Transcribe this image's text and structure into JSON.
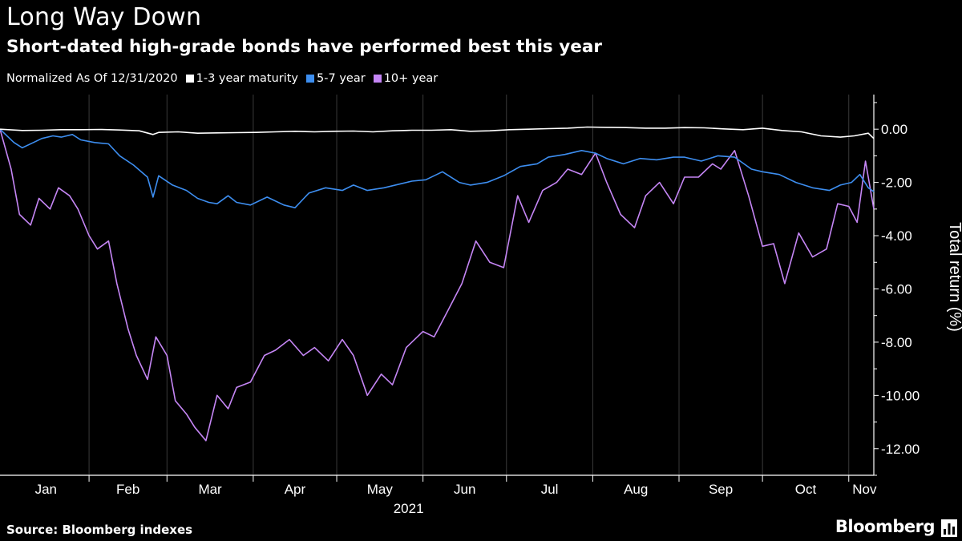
{
  "header": {
    "title": "Long Way Down",
    "subtitle": "Short-dated high-grade bonds have performed best this year"
  },
  "legend": {
    "note": "Normalized As Of 12/31/2020",
    "items": [
      {
        "label": "1-3 year maturity",
        "color": "#ffffff"
      },
      {
        "label": "5-7 year",
        "color": "#3d8ef0"
      },
      {
        "label": "10+ year",
        "color": "#c586f5"
      }
    ]
  },
  "footer": {
    "source": "Source: Bloomberg indexes",
    "brand": "Bloomberg",
    "brand_icon": "bloomberg-chart-icon"
  },
  "chart_data": {
    "type": "line",
    "title": "Long Way Down",
    "subtitle": "Short-dated high-grade bonds have performed best this year",
    "xlabel": "2021",
    "ylabel": "Total return (%)",
    "x_ticks": [
      "Jan",
      "Feb",
      "Mar",
      "Apr",
      "May",
      "Jun",
      "Jul",
      "Aug",
      "Sep",
      "Oct",
      "Nov"
    ],
    "x_year": "2021",
    "xlim": [
      "2020-12-31",
      "2021-11-10"
    ],
    "y_ticks": [
      0,
      -2,
      -4,
      -6,
      -8,
      -10,
      -12
    ],
    "y_tick_labels": [
      "0.00",
      "-2.00",
      "-4.00",
      "-6.00",
      "-8.00",
      "-10.00",
      "-12.00"
    ],
    "ylim": [
      -13,
      1.3
    ],
    "grid": "vertical month separators",
    "legend_position": "top-left",
    "series": [
      {
        "name": "1-3 year maturity",
        "color": "#ffffff",
        "x": [
          "2020-12-31",
          "2021-01-08",
          "2021-01-15",
          "2021-01-22",
          "2021-01-29",
          "2021-02-05",
          "2021-02-12",
          "2021-02-19",
          "2021-02-24",
          "2021-02-26",
          "2021-03-05",
          "2021-03-12",
          "2021-03-19",
          "2021-03-26",
          "2021-04-02",
          "2021-04-09",
          "2021-04-16",
          "2021-04-23",
          "2021-04-30",
          "2021-05-07",
          "2021-05-14",
          "2021-05-21",
          "2021-05-28",
          "2021-06-04",
          "2021-06-11",
          "2021-06-18",
          "2021-06-25",
          "2021-07-02",
          "2021-07-09",
          "2021-07-16",
          "2021-07-23",
          "2021-07-30",
          "2021-08-06",
          "2021-08-13",
          "2021-08-20",
          "2021-08-27",
          "2021-09-03",
          "2021-09-10",
          "2021-09-17",
          "2021-09-24",
          "2021-10-01",
          "2021-10-08",
          "2021-10-15",
          "2021-10-22",
          "2021-10-29",
          "2021-11-03",
          "2021-11-08",
          "2021-11-10"
        ],
        "values": [
          0.0,
          -0.05,
          -0.04,
          -0.02,
          -0.02,
          -0.01,
          -0.03,
          -0.06,
          -0.2,
          -0.12,
          -0.1,
          -0.15,
          -0.14,
          -0.13,
          -0.12,
          -0.1,
          -0.08,
          -0.1,
          -0.08,
          -0.07,
          -0.1,
          -0.06,
          -0.04,
          -0.04,
          -0.02,
          -0.08,
          -0.06,
          -0.02,
          0.0,
          0.02,
          0.04,
          0.08,
          0.07,
          0.06,
          0.04,
          0.04,
          0.06,
          0.05,
          0.01,
          -0.02,
          0.04,
          -0.05,
          -0.1,
          -0.25,
          -0.3,
          -0.25,
          -0.15,
          -0.35
        ]
      },
      {
        "name": "5-7 year",
        "color": "#3d8ef0",
        "x": [
          "2020-12-31",
          "2021-01-05",
          "2021-01-08",
          "2021-01-12",
          "2021-01-15",
          "2021-01-19",
          "2021-01-22",
          "2021-01-26",
          "2021-01-29",
          "2021-02-03",
          "2021-02-08",
          "2021-02-12",
          "2021-02-17",
          "2021-02-22",
          "2021-02-24",
          "2021-02-26",
          "2021-03-03",
          "2021-03-08",
          "2021-03-12",
          "2021-03-16",
          "2021-03-19",
          "2021-03-23",
          "2021-03-26",
          "2021-03-31",
          "2021-04-06",
          "2021-04-12",
          "2021-04-16",
          "2021-04-21",
          "2021-04-27",
          "2021-05-03",
          "2021-05-07",
          "2021-05-12",
          "2021-05-18",
          "2021-05-24",
          "2021-05-28",
          "2021-06-02",
          "2021-06-08",
          "2021-06-14",
          "2021-06-18",
          "2021-06-24",
          "2021-06-30",
          "2021-07-06",
          "2021-07-12",
          "2021-07-16",
          "2021-07-22",
          "2021-07-28",
          "2021-08-02",
          "2021-08-06",
          "2021-08-12",
          "2021-08-18",
          "2021-08-24",
          "2021-08-30",
          "2021-09-03",
          "2021-09-09",
          "2021-09-15",
          "2021-09-21",
          "2021-09-27",
          "2021-10-01",
          "2021-10-07",
          "2021-10-13",
          "2021-10-19",
          "2021-10-25",
          "2021-10-29",
          "2021-11-02",
          "2021-11-05",
          "2021-11-08",
          "2021-11-10"
        ],
        "values": [
          0.0,
          -0.5,
          -0.7,
          -0.5,
          -0.35,
          -0.25,
          -0.3,
          -0.2,
          -0.4,
          -0.5,
          -0.55,
          -1.0,
          -1.35,
          -1.8,
          -2.55,
          -1.75,
          -2.1,
          -2.3,
          -2.6,
          -2.75,
          -2.8,
          -2.5,
          -2.75,
          -2.85,
          -2.55,
          -2.85,
          -2.95,
          -2.4,
          -2.2,
          -2.3,
          -2.1,
          -2.3,
          -2.2,
          -2.05,
          -1.95,
          -1.9,
          -1.6,
          -2.0,
          -2.1,
          -2.0,
          -1.75,
          -1.4,
          -1.3,
          -1.05,
          -0.95,
          -0.8,
          -0.9,
          -1.1,
          -1.3,
          -1.1,
          -1.15,
          -1.05,
          -1.05,
          -1.2,
          -1.0,
          -1.05,
          -1.5,
          -1.6,
          -1.7,
          -2.0,
          -2.2,
          -2.3,
          -2.1,
          -2.0,
          -1.7,
          -2.2,
          -2.35
        ]
      },
      {
        "name": "10+ year",
        "color": "#c586f5",
        "x": [
          "2020-12-31",
          "2021-01-04",
          "2021-01-07",
          "2021-01-11",
          "2021-01-14",
          "2021-01-18",
          "2021-01-21",
          "2021-01-25",
          "2021-01-28",
          "2021-02-01",
          "2021-02-04",
          "2021-02-08",
          "2021-02-11",
          "2021-02-15",
          "2021-02-18",
          "2021-02-22",
          "2021-02-25",
          "2021-03-01",
          "2021-03-04",
          "2021-03-08",
          "2021-03-11",
          "2021-03-15",
          "2021-03-19",
          "2021-03-23",
          "2021-03-26",
          "2021-03-31",
          "2021-04-05",
          "2021-04-09",
          "2021-04-14",
          "2021-04-19",
          "2021-04-23",
          "2021-04-28",
          "2021-05-03",
          "2021-05-07",
          "2021-05-12",
          "2021-05-17",
          "2021-05-21",
          "2021-05-26",
          "2021-06-01",
          "2021-06-05",
          "2021-06-10",
          "2021-06-15",
          "2021-06-20",
          "2021-06-25",
          "2021-06-30",
          "2021-07-05",
          "2021-07-09",
          "2021-07-14",
          "2021-07-19",
          "2021-07-23",
          "2021-07-28",
          "2021-08-02",
          "2021-08-06",
          "2021-08-11",
          "2021-08-16",
          "2021-08-20",
          "2021-08-25",
          "2021-08-30",
          "2021-09-03",
          "2021-09-08",
          "2021-09-13",
          "2021-09-16",
          "2021-09-21",
          "2021-09-26",
          "2021-10-01",
          "2021-10-05",
          "2021-10-09",
          "2021-10-14",
          "2021-10-19",
          "2021-10-24",
          "2021-10-28",
          "2021-11-01",
          "2021-11-04",
          "2021-11-07",
          "2021-11-10"
        ],
        "values": [
          0.0,
          -1.5,
          -3.2,
          -3.6,
          -2.6,
          -3.0,
          -2.2,
          -2.5,
          -3.0,
          -4.0,
          -4.5,
          -4.2,
          -5.8,
          -7.5,
          -8.5,
          -9.4,
          -7.8,
          -8.5,
          -10.2,
          -10.7,
          -11.2,
          -11.7,
          -10.0,
          -10.5,
          -9.7,
          -9.5,
          -8.5,
          -8.3,
          -7.9,
          -8.5,
          -8.2,
          -8.7,
          -7.9,
          -8.5,
          -10.0,
          -9.2,
          -9.6,
          -8.2,
          -7.6,
          -7.8,
          -6.8,
          -5.8,
          -4.2,
          -5.0,
          -5.2,
          -2.5,
          -3.5,
          -2.3,
          -2.0,
          -1.5,
          -1.7,
          -0.9,
          -2.0,
          -3.2,
          -3.7,
          -2.5,
          -2.0,
          -2.8,
          -1.8,
          -1.8,
          -1.3,
          -1.5,
          -0.8,
          -2.5,
          -4.4,
          -4.3,
          -5.8,
          -3.9,
          -4.8,
          -4.5,
          -2.8,
          -2.9,
          -3.5,
          -1.2,
          -3.0
        ]
      }
    ]
  }
}
